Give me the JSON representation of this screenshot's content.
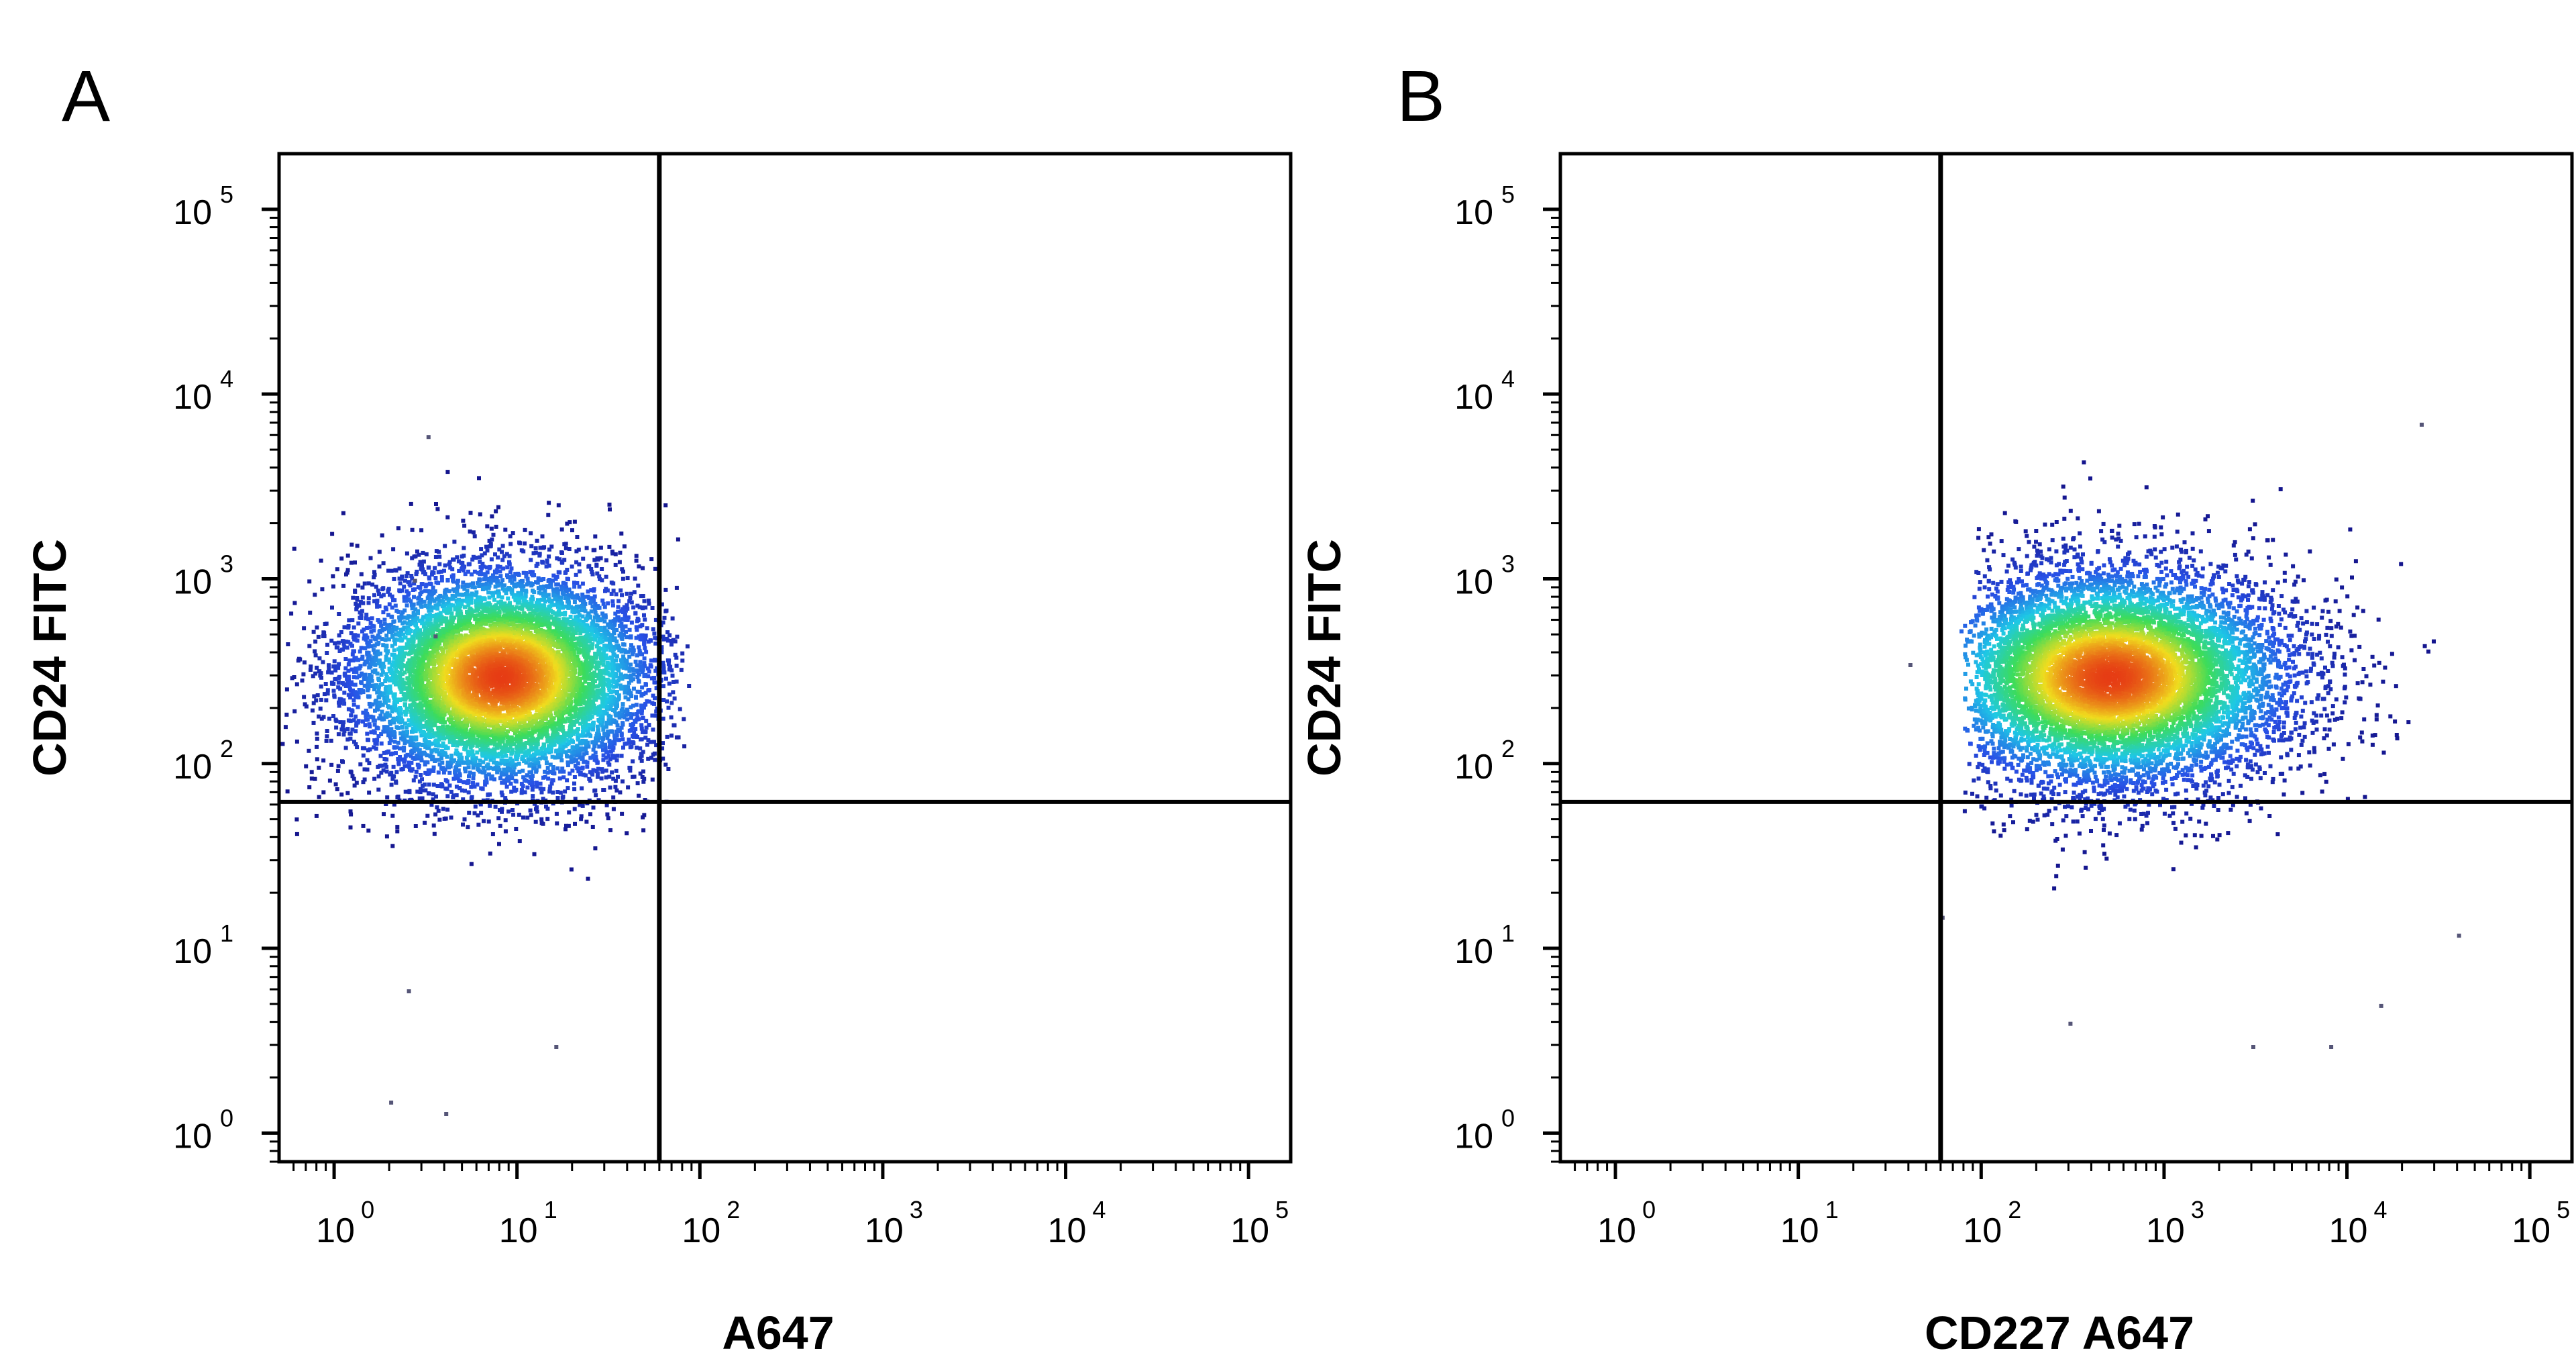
{
  "chart_data": [
    {
      "type": "scatter",
      "panel": "A",
      "xlabel": "A647",
      "ylabel": "CD24 FITC",
      "xscale": "log",
      "yscale": "log",
      "xlim": [
        0.5,
        170000
      ],
      "ylim": [
        0.7,
        200000
      ],
      "xticks": [
        1,
        10,
        100,
        1000,
        10000,
        100000
      ],
      "yticks": [
        1,
        10,
        100,
        1000,
        10000,
        100000
      ],
      "quadrant_gate": {
        "x": 60,
        "y": 62
      },
      "population": {
        "center": [
          8,
          300
        ],
        "spread_decades": [
          0.42,
          0.3
        ],
        "x_max": 62,
        "events": 9000,
        "density_coloring": "pseudocolor"
      },
      "outliers": [
        [
          3.2,
          6000
        ],
        [
          2.7,
          1000
        ],
        [
          3.5,
          500
        ],
        [
          2.5,
          6
        ],
        [
          16,
          3
        ],
        [
          2,
          1.5
        ],
        [
          4,
          1.3
        ]
      ],
      "grid": false
    },
    {
      "type": "scatter",
      "panel": "B",
      "xlabel": "CD227 A647",
      "ylabel": "CD24 FITC",
      "xscale": "log",
      "yscale": "log",
      "xlim": [
        0.5,
        170000
      ],
      "ylim": [
        0.7,
        200000
      ],
      "xticks": [
        1,
        10,
        100,
        1000,
        10000,
        100000
      ],
      "yticks": [
        1,
        10,
        100,
        1000,
        10000,
        100000
      ],
      "quadrant_gate": {
        "x": 60,
        "y": 62
      },
      "population": {
        "center": [
          500,
          300
        ],
        "spread_decades": [
          0.5,
          0.3
        ],
        "x_min": 100,
        "events": 9000,
        "density_coloring": "pseudocolor"
      },
      "outliers": [
        [
          25000,
          7000
        ],
        [
          40,
          350
        ],
        [
          300,
          4
        ],
        [
          15000,
          5
        ],
        [
          8000,
          3
        ],
        [
          3000,
          3
        ],
        [
          40000,
          12
        ],
        [
          60,
          15
        ]
      ],
      "grid": false
    }
  ],
  "panels": [
    {
      "letter": "A",
      "xlabel": "A647",
      "ylabel": "CD24 FITC"
    },
    {
      "letter": "B",
      "xlabel": "CD227 A647",
      "ylabel": "CD24 FITC"
    }
  ],
  "tick_base": "10",
  "tick_exponents": [
    "0",
    "1",
    "2",
    "3",
    "4",
    "5"
  ]
}
